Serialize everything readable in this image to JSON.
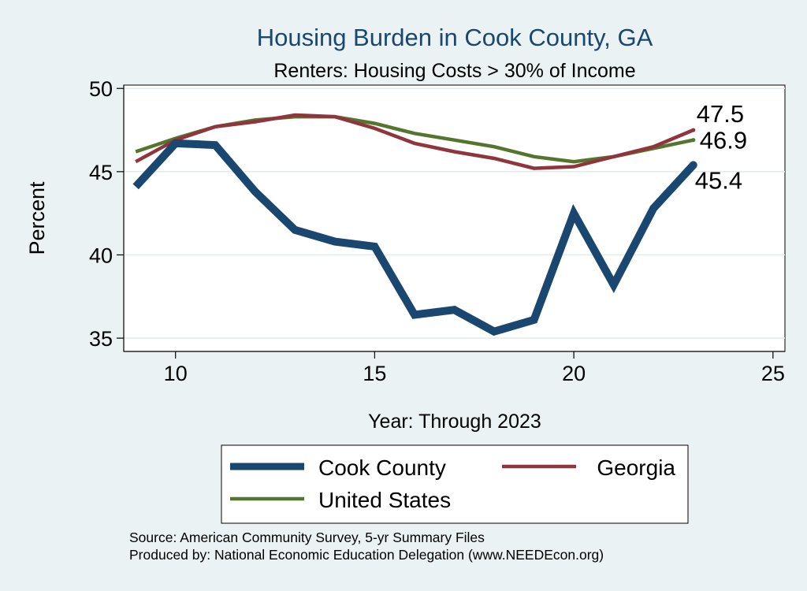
{
  "chart_data": {
    "type": "line",
    "title": "Housing Burden in Cook County, GA",
    "subtitle": "Renters: Housing Costs > 30% of Income",
    "xlabel": "Year: Through 2023",
    "ylabel": "Percent",
    "xlim": [
      8.7,
      25.3
    ],
    "ylim": [
      34.2,
      50.2
    ],
    "xticks": [
      10,
      15,
      20,
      25
    ],
    "yticks": [
      35,
      40,
      45,
      50
    ],
    "grid": true,
    "legend_position": "bottom",
    "x": [
      9,
      10,
      11,
      12,
      13,
      14,
      15,
      16,
      17,
      18,
      19,
      20,
      21,
      22,
      23
    ],
    "series": [
      {
        "name": "Cook County",
        "color": "#1a476f",
        "values": [
          44.1,
          46.7,
          46.6,
          43.8,
          41.5,
          40.8,
          40.5,
          36.4,
          36.7,
          35.4,
          36.1,
          42.5,
          38.2,
          42.8,
          45.4
        ],
        "end_label": "45.4"
      },
      {
        "name": "Georgia",
        "color": "#90353b",
        "values": [
          45.6,
          46.9,
          47.7,
          48.0,
          48.4,
          48.3,
          47.6,
          46.7,
          46.2,
          45.8,
          45.2,
          45.3,
          45.9,
          46.5,
          47.5
        ],
        "end_label": "47.5"
      },
      {
        "name": "United States",
        "color": "#55752f",
        "values": [
          46.2,
          47.0,
          47.7,
          48.1,
          48.3,
          48.3,
          47.9,
          47.3,
          46.9,
          46.5,
          45.9,
          45.6,
          45.9,
          46.4,
          46.9
        ],
        "end_label": "46.9"
      }
    ]
  },
  "footer": {
    "source": "Source: American Community Survey, 5-yr Summary Files",
    "produced_by": "Produced by: National Economic Education Delegation (www.NEEDEcon.org)"
  }
}
